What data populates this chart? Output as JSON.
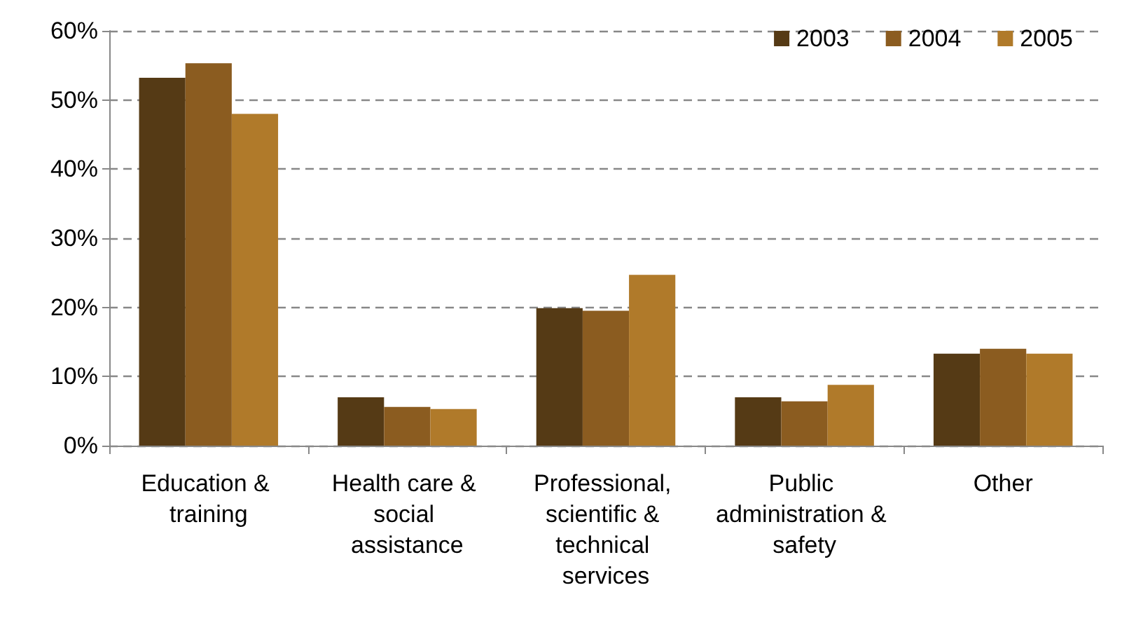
{
  "chart_data": {
    "type": "bar",
    "categories": [
      "Education & training",
      "Health care & social assistance",
      "Professional, scientific & technical services",
      "Public administration & safety",
      "Other"
    ],
    "series": [
      {
        "name": "2003",
        "color": "#553a15",
        "values": [
          53.2,
          7.0,
          19.9,
          7.0,
          13.3
        ]
      },
      {
        "name": "2004",
        "color": "#8b5c20",
        "values": [
          55.3,
          5.6,
          19.5,
          6.4,
          14.0
        ]
      },
      {
        "name": "2005",
        "color": "#b07a2a",
        "values": [
          48.0,
          5.3,
          24.7,
          8.8,
          13.3
        ]
      }
    ],
    "ylim": [
      0,
      60
    ],
    "yticks": [
      {
        "value": 0,
        "label": "0%"
      },
      {
        "value": 10,
        "label": "10%"
      },
      {
        "value": 20,
        "label": "20%"
      },
      {
        "value": 30,
        "label": "30%"
      },
      {
        "value": 40,
        "label": "40%"
      },
      {
        "value": 50,
        "label": "50%"
      },
      {
        "value": 60,
        "label": "60%"
      }
    ],
    "grid": "y",
    "legend": "top right"
  }
}
